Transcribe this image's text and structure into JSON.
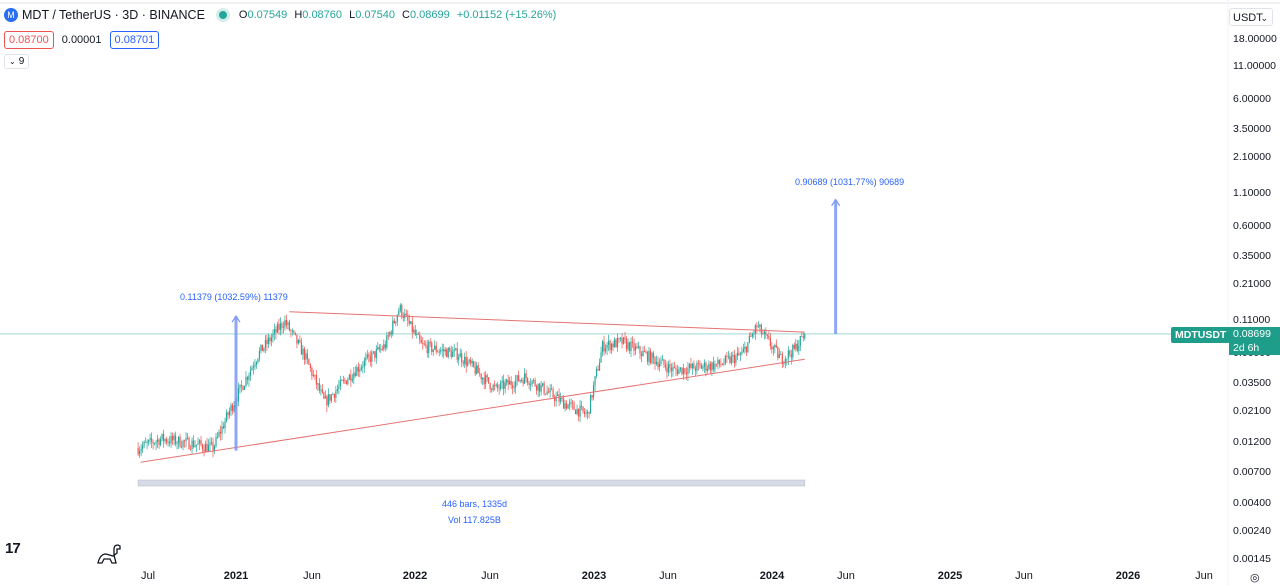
{
  "header": {
    "symbol_title": "MDT / TetherUS · 3D · BINANCE",
    "ohlc": {
      "o_label": "O",
      "o": "0.07549",
      "h_label": "H",
      "h": "0.08760",
      "l_label": "L",
      "l": "0.07540",
      "c_label": "C",
      "c": "0.08699",
      "change": "+0.01152 (+15.26%)"
    },
    "sell_price": "0.08700",
    "spread": "0.00001",
    "buy_price": "0.08701",
    "indicator_count": "9",
    "currency": "USDT"
  },
  "price_tag": {
    "symbol": "MDTUSDT",
    "price": "0.08699",
    "countdown": "2d 6h"
  },
  "annotations": {
    "measure_left": "0.11379 (1032.59%) 11379",
    "measure_right": "0.90689 (1031.77%) 90689",
    "range_bars": "446 bars, 1335d",
    "range_vol": "Vol 117.825B"
  },
  "colors": {
    "up": "#26a69a",
    "down": "#ef5350",
    "trendline": "#e57373",
    "measure": "#7b96f5",
    "price_line": "#26a69a"
  },
  "chart_data": {
    "type": "candlestick",
    "scale": "log",
    "y_ticks": [
      "18.00000",
      "11.00000",
      "6.00000",
      "3.50000",
      "2.10000",
      "1.10000",
      "0.60000",
      "0.35000",
      "0.21000",
      "0.11000",
      "0.06000",
      "0.03500",
      "0.02100",
      "0.01200",
      "0.00700",
      "0.00400",
      "0.00240",
      "0.00145"
    ],
    "x_ticks": [
      {
        "label": "Jul",
        "bold": false
      },
      {
        "label": "2021",
        "bold": true
      },
      {
        "label": "Jun",
        "bold": false
      },
      {
        "label": "2022",
        "bold": true
      },
      {
        "label": "Jun",
        "bold": false
      },
      {
        "label": "2023",
        "bold": true
      },
      {
        "label": "Jun",
        "bold": false
      },
      {
        "label": "2024",
        "bold": true
      },
      {
        "label": "Jun",
        "bold": false
      },
      {
        "label": "2025",
        "bold": true
      },
      {
        "label": "Jun",
        "bold": false
      },
      {
        "label": "2026",
        "bold": true
      },
      {
        "label": "Jun",
        "bold": false
      }
    ],
    "last_price": 0.08699,
    "series_path": [
      [
        "2020-06-15",
        0.011
      ],
      [
        "2020-08-01",
        0.013
      ],
      [
        "2020-10-01",
        0.012
      ],
      [
        "2020-11-15",
        0.011
      ],
      [
        "2020-12-20",
        0.022
      ],
      [
        "2021-02-15",
        0.06
      ],
      [
        "2021-04-10",
        0.11
      ],
      [
        "2021-05-20",
        0.06
      ],
      [
        "2021-07-01",
        0.025
      ],
      [
        "2021-09-01",
        0.045
      ],
      [
        "2021-11-01",
        0.07
      ],
      [
        "2021-12-01",
        0.14
      ],
      [
        "2022-01-15",
        0.07
      ],
      [
        "2022-04-01",
        0.06
      ],
      [
        "2022-06-15",
        0.032
      ],
      [
        "2022-08-15",
        0.04
      ],
      [
        "2022-11-01",
        0.025
      ],
      [
        "2022-12-20",
        0.02
      ],
      [
        "2023-01-20",
        0.07
      ],
      [
        "2023-03-01",
        0.075
      ],
      [
        "2023-06-15",
        0.045
      ],
      [
        "2023-09-15",
        0.05
      ],
      [
        "2023-11-01",
        0.06
      ],
      [
        "2023-12-01",
        0.1
      ],
      [
        "2024-01-20",
        0.055
      ],
      [
        "2024-02-15",
        0.065
      ],
      [
        "2024-03-08",
        0.08699
      ]
    ],
    "trendlines": [
      {
        "from": [
          "2021-04-20",
          0.13
        ],
        "to": [
          "2024-03-08",
          0.09
        ]
      },
      {
        "from": [
          "2020-06-20",
          0.0085
        ],
        "to": [
          "2024-03-08",
          0.055
        ]
      }
    ],
    "measures": [
      {
        "date": "2021-01-01",
        "from": 0.0105,
        "to": 0.12,
        "label": "0.11379 (1032.59%) 11379"
      },
      {
        "date": "2024-05-10",
        "from": 0.087,
        "to": 0.99,
        "label": "0.90689 (1031.77%) 90689"
      }
    ],
    "date_range": {
      "from": "2020-06-15",
      "to": "2024-03-08",
      "bars": 446,
      "days": 1335,
      "volume": "117.825B"
    }
  }
}
